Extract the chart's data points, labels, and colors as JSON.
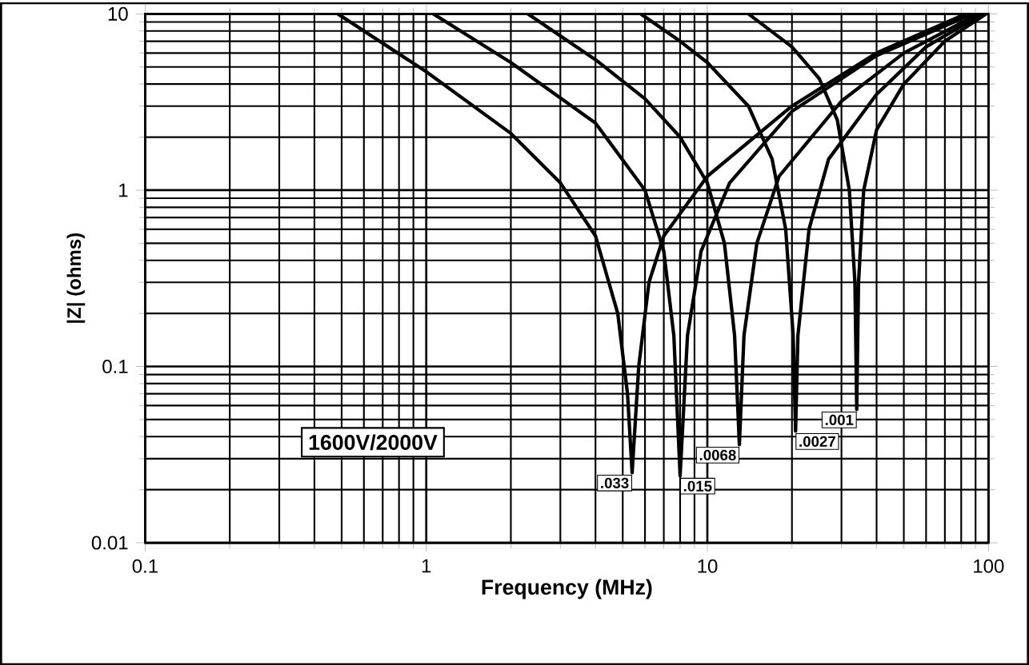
{
  "chart_data": {
    "type": "line",
    "xlabel": "Frequency (MHz)",
    "ylabel": "|Z| (ohms)",
    "log": "xy",
    "grid": true,
    "marker": "none",
    "line_style": "solid",
    "xlim": [
      0.1,
      100
    ],
    "ylim": [
      0.01,
      10
    ],
    "xticks": [
      0.1,
      1,
      10,
      100
    ],
    "yticks": [
      0.01,
      0.1,
      1,
      10
    ],
    "annotations": [
      "1600V/2000V"
    ],
    "series": [
      {
        "name": ".033",
        "color": "#000000",
        "x": [
          0.485,
          1,
          2,
          3,
          4,
          4.8,
          5.2,
          5.4,
          5.7,
          6.2,
          7,
          10,
          20,
          40,
          83
        ],
        "values": [
          10,
          4.7,
          2.1,
          1.1,
          0.55,
          0.2,
          0.07,
          0.025,
          0.1,
          0.3,
          0.55,
          1.2,
          3,
          6,
          10
        ]
      },
      {
        "name": ".015",
        "color": "#000000",
        "x": [
          1.06,
          2,
          4,
          6,
          7,
          7.6,
          8,
          8.5,
          9.5,
          12,
          20,
          40,
          88
        ],
        "values": [
          10,
          5.3,
          2.4,
          1,
          0.45,
          0.15,
          0.024,
          0.15,
          0.45,
          1.1,
          2.8,
          5.8,
          10
        ]
      },
      {
        "name": ".0068",
        "color": "#000000",
        "x": [
          2.3,
          4,
          6,
          8,
          10,
          11.5,
          12.5,
          13,
          13.5,
          15,
          18,
          30,
          50,
          92
        ],
        "values": [
          10,
          5.5,
          3.3,
          2,
          1.1,
          0.5,
          0.15,
          0.036,
          0.15,
          0.5,
          1.2,
          3.2,
          6,
          10
        ]
      },
      {
        "name": ".0027",
        "color": "#000000",
        "x": [
          5.8,
          8,
          10,
          14,
          17,
          19,
          20.2,
          20.6,
          21,
          23,
          27,
          40,
          60,
          95
        ],
        "values": [
          10,
          7,
          5.3,
          3,
          1.5,
          0.6,
          0.15,
          0.043,
          0.15,
          0.6,
          1.5,
          3.5,
          6.5,
          10
        ]
      },
      {
        "name": ".001",
        "color": "#000000",
        "x": [
          14,
          20,
          25,
          29,
          32,
          33.5,
          34,
          34.5,
          36,
          40,
          50,
          70,
          98
        ],
        "values": [
          10,
          6.5,
          4.3,
          2.5,
          1,
          0.3,
          0.057,
          0.3,
          1,
          2.2,
          4,
          7,
          10
        ]
      }
    ]
  }
}
